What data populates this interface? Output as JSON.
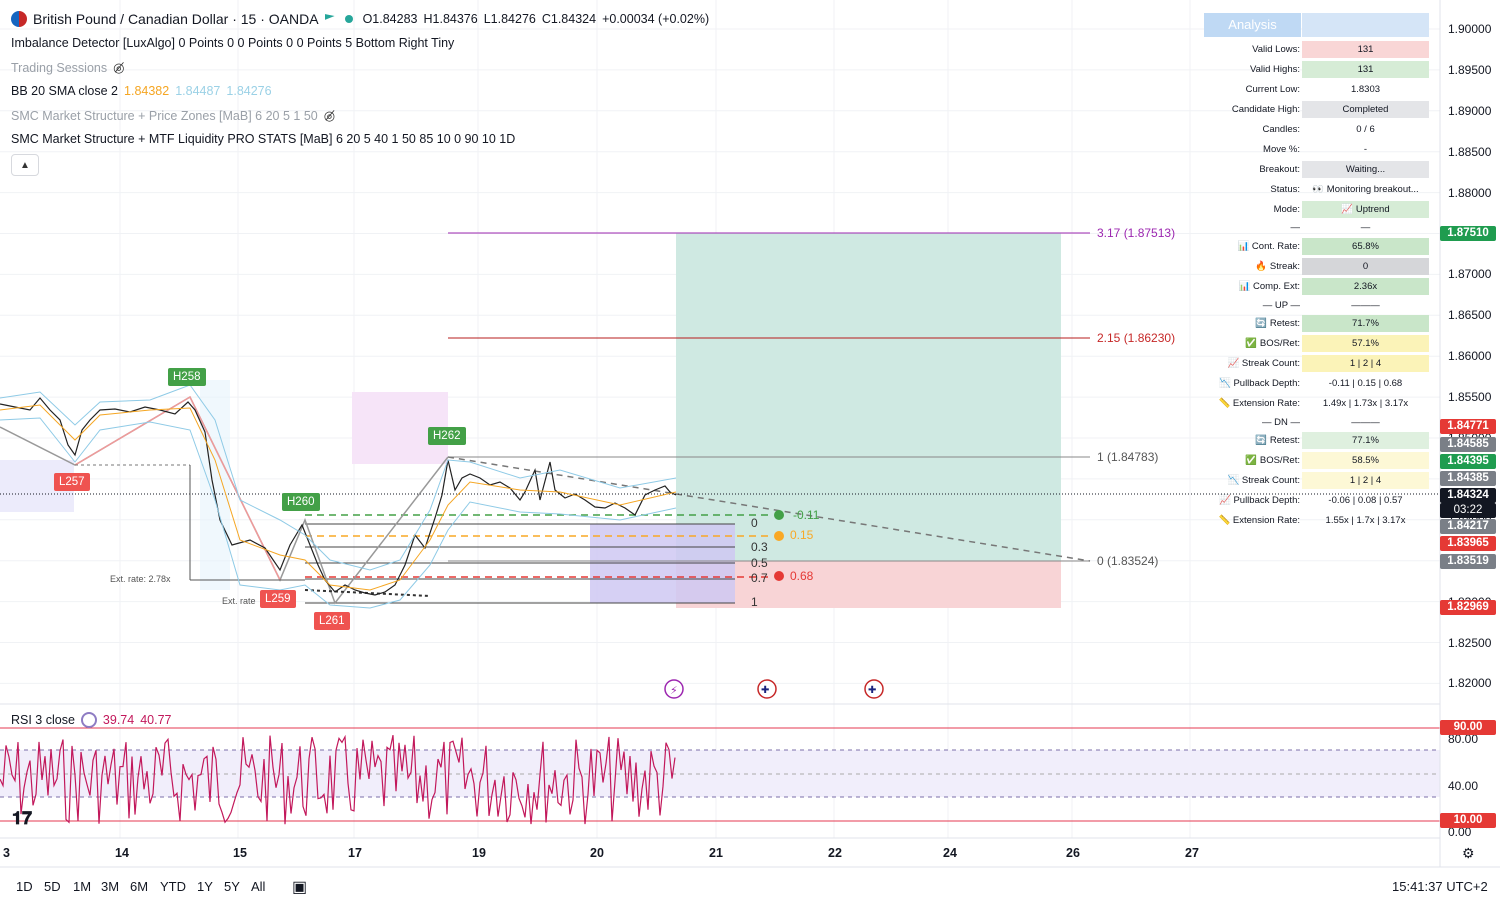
{
  "header": {
    "symbol_title": "British Pound / Canadian Dollar · 15 · OANDA",
    "open": "O1.84283",
    "high": "H1.84376",
    "low": "L1.84276",
    "close": "C1.84324",
    "change": "+0.00034 (+0.02%)"
  },
  "indicators": {
    "imbalance": "Imbalance Detector [LuxAlgo] 0 Points 0 0 Points 0 0 Points 5 Bottom Right Tiny",
    "sessions": "Trading Sessions",
    "bb_label": "BB 20 SMA close 2",
    "bb_v1": "1.84382",
    "bb_v2": "1.84487",
    "bb_v3": "1.84276",
    "smc_zones": "SMC Market Structure + Price Zones [MaB] 6 20 5 1 50",
    "smc_mtf": "SMC Market Structure + MTF Liquidity PRO STATS [MaB] 6 20 5 40 1 50 85 10 0 90 10 1D"
  },
  "analysis": {
    "title": "Analysis",
    "rows": [
      {
        "label": "Valid Lows:",
        "value": "131",
        "bg": "#f9d6d6"
      },
      {
        "label": "Valid Highs:",
        "value": "131",
        "bg": "#d6ecd6"
      },
      {
        "label": "Current Low:",
        "value": "1.8303",
        "bg": ""
      },
      {
        "label": "Candidate High:",
        "value": "Completed",
        "bg": "#e4e5e8"
      },
      {
        "label": "Candles:",
        "value": "0 / 6",
        "bg": ""
      },
      {
        "label": "Move %:",
        "value": "-",
        "bg": ""
      },
      {
        "label": "Breakout:",
        "value": "Waiting...",
        "bg": "#e4e5e8"
      },
      {
        "label": "Status:",
        "value": "👀 Monitoring breakout...",
        "bg": ""
      },
      {
        "label": "Mode:",
        "value": "📈 Uptrend",
        "bg": "#d6ecd6"
      },
      {
        "label": "—",
        "value": "—",
        "bg": ""
      },
      {
        "label": "📊 Cont. Rate:",
        "value": "65.8%",
        "bg": "#c9e6c9"
      },
      {
        "label": "🔥 Streak:",
        "value": "0",
        "bg": "#d5d6d9"
      },
      {
        "label": "📊 Comp. Ext:",
        "value": "2.36x",
        "bg": "#c9e6c9"
      },
      {
        "label": "— UP —",
        "value": "———",
        "bg": ""
      },
      {
        "label": "🔄 Retest:",
        "value": "71.7%",
        "bg": "#c9e6c9"
      },
      {
        "label": "✅ BOS/Ret:",
        "value": "57.1%",
        "bg": "#fbf3b8"
      },
      {
        "label": "📈 Streak Count:",
        "value": "1 | 2 | 4",
        "bg": "#fbf3b8"
      },
      {
        "label": "📉 Pullback Depth:",
        "value": "-0.11 | 0.15 | 0.68",
        "bg": ""
      },
      {
        "label": "📏 Extension Rate:",
        "value": "1.49x | 1.73x | 3.17x",
        "bg": ""
      },
      {
        "label": "— DN —",
        "value": "———",
        "bg": ""
      },
      {
        "label": "🔄 Retest:",
        "value": "77.1%",
        "bg": "#dff0df"
      },
      {
        "label": "✅ BOS/Ret:",
        "value": "58.5%",
        "bg": "#fdf8d6"
      },
      {
        "label": "📉 Streak Count:",
        "value": "1 | 2 | 4",
        "bg": "#fdf8d6"
      },
      {
        "label": "📈 Pullback Depth:",
        "value": "-0.06 | 0.08 | 0.57",
        "bg": ""
      },
      {
        "label": "📏 Extension Rate:",
        "value": "1.55x | 1.7x | 3.17x",
        "bg": ""
      }
    ]
  },
  "price_axis": [
    "1.90000",
    "1.89500",
    "1.89000",
    "1.88500",
    "1.88000",
    "1.87500",
    "1.87000",
    "1.86500",
    "1.86000",
    "1.85500",
    "1.85000",
    "1.84500",
    "1.84000",
    "1.83500",
    "1.83000",
    "1.82500",
    "1.82000"
  ],
  "price_tags": {
    "t1": {
      "text": "1.87510",
      "color": "#1f9c4f"
    },
    "t2": {
      "text": "1.84771",
      "color": "#e53935"
    },
    "t3": {
      "text": "1.84585",
      "color": "#7a7f87"
    },
    "t4": {
      "text": "1.84395",
      "color": "#1f9c4f"
    },
    "t5": {
      "text": "1.84385",
      "color": "#7a7f87"
    },
    "t6": {
      "text": "1.84324",
      "color": "#131722"
    },
    "t6b": {
      "text": "03:22",
      "color": "#131722"
    },
    "t7": {
      "text": "1.84217",
      "color": "#7a7f87"
    },
    "t8": {
      "text": "1.83965",
      "color": "#e53935"
    },
    "t9": {
      "text": "1.83519",
      "color": "#7a7f87"
    },
    "t10": {
      "text": "1.82969",
      "color": "#e53935"
    }
  },
  "levels": {
    "l317": "3.17 (1.87513)",
    "l215": "2.15 (1.86230)",
    "l1": "1 (1.84783)",
    "l0": "0 (1.83524)"
  },
  "fib": {
    "f0": "0",
    "f03": "0.3",
    "f05": "0.5",
    "f07": "0.7",
    "f1": "1",
    "pb1": "-0.11",
    "pb2": "0.15",
    "pb3": "0.68"
  },
  "pivots": {
    "h258": "H258",
    "h260": "H260",
    "h262": "H262",
    "l257": "L257",
    "l259": "L259",
    "l261": "L261"
  },
  "ext_labels": {
    "e1": "Ext. rate: 2.78x",
    "e2": "Ext. rate"
  },
  "rsi": {
    "label": "RSI 3 close",
    "v1": "39.74",
    "v2": "40.77",
    "axis": [
      "80.00",
      "40.00",
      "0.00"
    ],
    "tag_hi": "90.00",
    "tag_lo": "10.00"
  },
  "time_axis": [
    "3",
    "14",
    "15",
    "17",
    "19",
    "20",
    "21",
    "22",
    "24",
    "26",
    "27"
  ],
  "toolbar": {
    "ranges": [
      "1D",
      "5D",
      "1M",
      "3M",
      "6M",
      "YTD",
      "1Y",
      "5Y",
      "All"
    ],
    "clock": "15:41:37 UTC+2"
  }
}
